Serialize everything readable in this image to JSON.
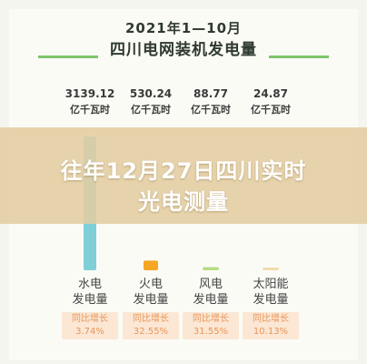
{
  "page": {
    "title_line1": "2021年1—10月",
    "title_line2": "四川电网装机发电量",
    "headline_line1": "往年12月27日四川实时",
    "headline_line2": "光电测量"
  },
  "chart_data": {
    "type": "bar",
    "title": "2021年1—10月 四川电网装机发电量",
    "unit": "亿千瓦时",
    "categories": [
      "水电发电量",
      "火电发电量",
      "风电发电量",
      "太阳能发电量"
    ],
    "values": [
      3139.12,
      530.24,
      88.77,
      24.87
    ],
    "value_labels": [
      "3139.12",
      "530.24",
      "88.77",
      "24.87"
    ],
    "growth_label": "同比增长",
    "growth": [
      "3.74%",
      "32.55%",
      "31.55%",
      "10.13%"
    ]
  },
  "items": [
    {
      "value": "3139.12",
      "unit": "亿千瓦时",
      "name_a": "水电",
      "name_b": "发电量",
      "growth_label": "同比增长",
      "growth": "3.74%"
    },
    {
      "value": "530.24",
      "unit": "亿千瓦时",
      "name_a": "火电",
      "name_b": "发电量",
      "growth_label": "同比增长",
      "growth": "32.55%"
    },
    {
      "value": "88.77",
      "unit": "亿千瓦时",
      "name_a": "风电",
      "name_b": "发电量",
      "growth_label": "同比增长",
      "growth": "31.55%"
    },
    {
      "value": "24.87",
      "unit": "亿千瓦时",
      "name_a": "太阳能",
      "name_b": "发电量",
      "growth_label": "同比增长",
      "growth": "10.13%"
    }
  ],
  "colors": {
    "title_line": "#7fc66a",
    "bars": [
      "#7fcfd8",
      "#f5a623",
      "#b5dd86",
      "#f0dcae"
    ],
    "badge_text": "#e8965a",
    "badge_bg": "#fbe7d4",
    "headline": "#ffffff"
  }
}
